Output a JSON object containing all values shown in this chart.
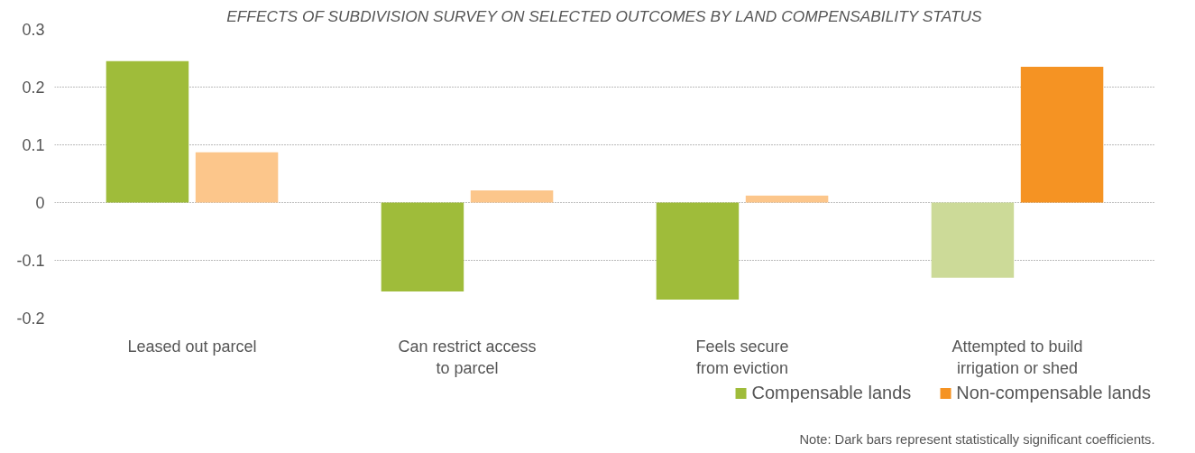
{
  "chart_data": {
    "type": "bar",
    "title": "EFFECTS OF SUBDIVISION SURVEY ON SELECTED OUTCOMES BY LAND COMPENSABILITY STATUS",
    "categories": [
      "Leased out parcel",
      "Can restrict access\nto parcel",
      "Feels secure\nfrom eviction",
      "Attempted to build\nirrigation or shed"
    ],
    "series": [
      {
        "name": "Compensable lands",
        "color": "#9fbc3a",
        "colors": [
          "#9fbc3a",
          "#9fbc3a",
          "#9fbc3a",
          "#ccda98"
        ],
        "values": [
          0.245,
          -0.154,
          -0.168,
          -0.13
        ]
      },
      {
        "name": "Non-compensable lands",
        "color": "#f59323",
        "colors": [
          "#fcc68b",
          "#fcc68b",
          "#fcc68b",
          "#f59323"
        ],
        "values": [
          0.087,
          0.021,
          0.012,
          0.235
        ]
      }
    ],
    "ylim": [
      -0.2,
      0.3
    ],
    "yticks": [
      0.3,
      0.2,
      0.1,
      0,
      -0.1,
      -0.2
    ],
    "grid": "y",
    "legend": "bottom right",
    "annotations": [
      "Note: Dark bars represent statistically significant coefficients."
    ]
  }
}
